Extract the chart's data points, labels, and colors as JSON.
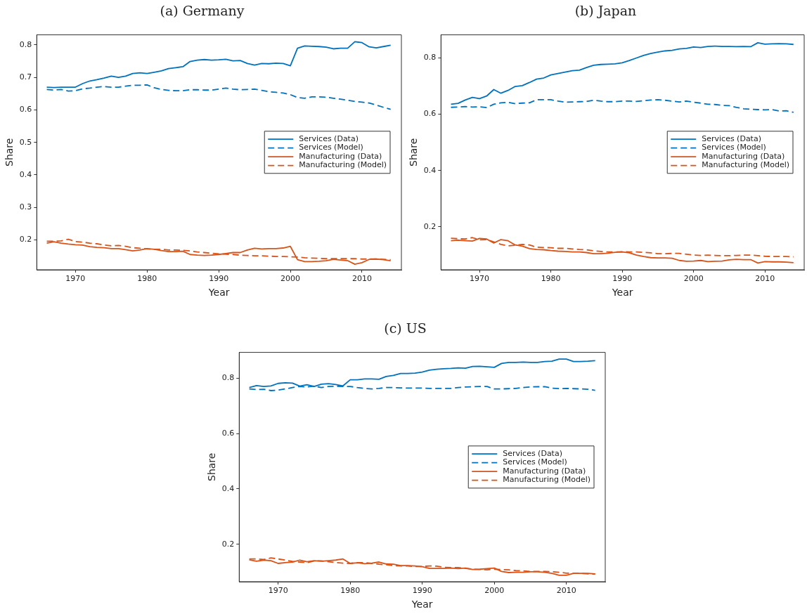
{
  "chart_data": [
    {
      "type": "line",
      "title": "(a) Germany",
      "xlabel": "Year",
      "ylabel": "Share",
      "legend": "right",
      "grid": false,
      "x": [
        1966,
        1967,
        1968,
        1969,
        1970,
        1971,
        1972,
        1973,
        1974,
        1975,
        1976,
        1977,
        1978,
        1979,
        1980,
        1981,
        1982,
        1983,
        1984,
        1985,
        1986,
        1987,
        1988,
        1989,
        1990,
        1991,
        1992,
        1993,
        1994,
        1995,
        1996,
        1997,
        1998,
        1999,
        2000,
        2001,
        2002,
        2003,
        2004,
        2005,
        2006,
        2007,
        2008,
        2009,
        2010,
        2011,
        2012,
        2013,
        2014
      ],
      "xlim": [
        1964.6,
        2015.5
      ],
      "xticks": [
        1970,
        1980,
        1990,
        2000,
        2010
      ],
      "ylim": [
        0.108,
        0.831
      ],
      "yticks": [
        0.2,
        0.3,
        0.4,
        0.5,
        0.6,
        0.7,
        0.8
      ],
      "series": [
        {
          "name": "Services (Data)",
          "color": "#0072bd",
          "line_style": "solid",
          "values": [
            0.67,
            0.669,
            0.67,
            0.67,
            0.67,
            0.681,
            0.689,
            0.693,
            0.698,
            0.704,
            0.7,
            0.704,
            0.712,
            0.714,
            0.712,
            0.716,
            0.72,
            0.727,
            0.73,
            0.733,
            0.749,
            0.753,
            0.755,
            0.753,
            0.754,
            0.756,
            0.751,
            0.752,
            0.743,
            0.738,
            0.743,
            0.742,
            0.744,
            0.743,
            0.736,
            0.79,
            0.797,
            0.796,
            0.795,
            0.793,
            0.788,
            0.79,
            0.79,
            0.81,
            0.807,
            0.794,
            0.791,
            0.795,
            0.799
          ]
        },
        {
          "name": "Services (Model)",
          "color": "#0072bd",
          "line_style": "dashed",
          "values": [
            0.663,
            0.661,
            0.663,
            0.658,
            0.659,
            0.665,
            0.667,
            0.67,
            0.672,
            0.67,
            0.67,
            0.673,
            0.676,
            0.676,
            0.677,
            0.668,
            0.663,
            0.66,
            0.659,
            0.659,
            0.662,
            0.662,
            0.661,
            0.661,
            0.664,
            0.667,
            0.664,
            0.662,
            0.663,
            0.664,
            0.66,
            0.656,
            0.654,
            0.652,
            0.647,
            0.638,
            0.636,
            0.64,
            0.64,
            0.639,
            0.636,
            0.633,
            0.63,
            0.626,
            0.624,
            0.621,
            0.615,
            0.608,
            0.602
          ]
        },
        {
          "name": "Manufacturing (Data)",
          "color": "#d95319",
          "line_style": "solid",
          "values": [
            0.19,
            0.194,
            0.19,
            0.187,
            0.185,
            0.184,
            0.179,
            0.177,
            0.176,
            0.173,
            0.173,
            0.17,
            0.166,
            0.169,
            0.173,
            0.171,
            0.167,
            0.164,
            0.164,
            0.165,
            0.155,
            0.153,
            0.152,
            0.153,
            0.155,
            0.158,
            0.161,
            0.161,
            0.169,
            0.174,
            0.172,
            0.173,
            0.173,
            0.175,
            0.18,
            0.139,
            0.133,
            0.133,
            0.134,
            0.136,
            0.14,
            0.138,
            0.136,
            0.125,
            0.13,
            0.14,
            0.141,
            0.139,
            0.136
          ]
        },
        {
          "name": "Manufacturing (Model)",
          "color": "#d95319",
          "line_style": "dashed",
          "values": [
            0.196,
            0.196,
            0.197,
            0.202,
            0.195,
            0.193,
            0.19,
            0.188,
            0.184,
            0.182,
            0.183,
            0.18,
            0.176,
            0.174,
            0.172,
            0.171,
            0.171,
            0.169,
            0.169,
            0.168,
            0.166,
            0.163,
            0.161,
            0.159,
            0.157,
            0.156,
            0.155,
            0.153,
            0.152,
            0.151,
            0.151,
            0.15,
            0.149,
            0.149,
            0.148,
            0.147,
            0.145,
            0.144,
            0.143,
            0.142,
            0.142,
            0.142,
            0.142,
            0.142,
            0.141,
            0.141,
            0.141,
            0.14,
            0.139
          ]
        }
      ]
    },
    {
      "type": "line",
      "title": "(b) Japan",
      "xlabel": "Year",
      "ylabel": "Share",
      "legend": "right",
      "grid": false,
      "x": [
        1966,
        1967,
        1968,
        1969,
        1970,
        1971,
        1972,
        1973,
        1974,
        1975,
        1976,
        1977,
        1978,
        1979,
        1980,
        1981,
        1982,
        1983,
        1984,
        1985,
        1986,
        1987,
        1988,
        1989,
        1990,
        1991,
        1992,
        1993,
        1994,
        1995,
        1996,
        1997,
        1998,
        1999,
        2000,
        2001,
        2002,
        2003,
        2004,
        2005,
        2006,
        2007,
        2008,
        2009,
        2010,
        2011,
        2012,
        2013,
        2014
      ],
      "xlim": [
        1964.6,
        2015.5
      ],
      "xticks": [
        1970,
        1980,
        1990,
        2000,
        2010
      ],
      "ylim": [
        0.048,
        0.881
      ],
      "yticks": [
        0.2,
        0.4,
        0.6,
        0.8
      ],
      "series": [
        {
          "name": "Services (Data)",
          "color": "#0072bd",
          "line_style": "solid",
          "values": [
            0.635,
            0.638,
            0.65,
            0.659,
            0.655,
            0.664,
            0.687,
            0.674,
            0.684,
            0.698,
            0.701,
            0.712,
            0.724,
            0.728,
            0.739,
            0.744,
            0.749,
            0.754,
            0.756,
            0.765,
            0.773,
            0.776,
            0.777,
            0.778,
            0.782,
            0.79,
            0.799,
            0.808,
            0.815,
            0.82,
            0.824,
            0.826,
            0.831,
            0.833,
            0.838,
            0.836,
            0.84,
            0.841,
            0.84,
            0.84,
            0.839,
            0.84,
            0.839,
            0.853,
            0.848,
            0.849,
            0.85,
            0.849,
            0.847
          ]
        },
        {
          "name": "Services (Model)",
          "color": "#0072bd",
          "line_style": "dashed",
          "values": [
            0.624,
            0.625,
            0.627,
            0.625,
            0.626,
            0.623,
            0.635,
            0.64,
            0.642,
            0.637,
            0.639,
            0.64,
            0.651,
            0.651,
            0.651,
            0.646,
            0.642,
            0.643,
            0.644,
            0.645,
            0.649,
            0.646,
            0.644,
            0.644,
            0.646,
            0.646,
            0.645,
            0.647,
            0.65,
            0.651,
            0.649,
            0.646,
            0.643,
            0.646,
            0.642,
            0.639,
            0.635,
            0.634,
            0.631,
            0.63,
            0.624,
            0.619,
            0.617,
            0.616,
            0.615,
            0.616,
            0.611,
            0.612,
            0.606
          ]
        },
        {
          "name": "Manufacturing (Data)",
          "color": "#d95319",
          "line_style": "solid",
          "values": [
            0.151,
            0.153,
            0.151,
            0.15,
            0.159,
            0.157,
            0.143,
            0.155,
            0.151,
            0.136,
            0.132,
            0.123,
            0.12,
            0.119,
            0.116,
            0.114,
            0.113,
            0.111,
            0.111,
            0.109,
            0.105,
            0.105,
            0.107,
            0.11,
            0.111,
            0.108,
            0.1,
            0.095,
            0.091,
            0.09,
            0.09,
            0.089,
            0.081,
            0.078,
            0.079,
            0.081,
            0.077,
            0.078,
            0.079,
            0.083,
            0.085,
            0.084,
            0.084,
            0.072,
            0.077,
            0.076,
            0.076,
            0.075,
            0.073
          ]
        },
        {
          "name": "Manufacturing (Model)",
          "color": "#d95319",
          "line_style": "dashed",
          "values": [
            0.16,
            0.158,
            0.157,
            0.162,
            0.154,
            0.155,
            0.147,
            0.138,
            0.133,
            0.135,
            0.138,
            0.136,
            0.128,
            0.127,
            0.126,
            0.124,
            0.124,
            0.122,
            0.12,
            0.119,
            0.115,
            0.113,
            0.111,
            0.111,
            0.112,
            0.111,
            0.111,
            0.11,
            0.108,
            0.105,
            0.105,
            0.106,
            0.106,
            0.103,
            0.1,
            0.099,
            0.1,
            0.099,
            0.098,
            0.098,
            0.099,
            0.1,
            0.1,
            0.098,
            0.096,
            0.095,
            0.095,
            0.095,
            0.094
          ]
        }
      ]
    },
    {
      "type": "line",
      "title": "(c) US",
      "xlabel": "Year",
      "ylabel": "Share",
      "legend": "right",
      "grid": false,
      "x": [
        1966,
        1967,
        1968,
        1969,
        1970,
        1971,
        1972,
        1973,
        1974,
        1975,
        1976,
        1977,
        1978,
        1979,
        1980,
        1981,
        1982,
        1983,
        1984,
        1985,
        1986,
        1987,
        1988,
        1989,
        1990,
        1991,
        1992,
        1993,
        1994,
        1995,
        1996,
        1997,
        1998,
        1999,
        2000,
        2001,
        2002,
        2003,
        2004,
        2005,
        2006,
        2007,
        2008,
        2009,
        2010,
        2011,
        2012,
        2013,
        2014
      ],
      "xlim": [
        1964.6,
        2015.4
      ],
      "xticks": [
        1970,
        1980,
        1990,
        2000,
        2010
      ],
      "ylim": [
        0.065,
        0.893
      ],
      "yticks": [
        0.2,
        0.4,
        0.6,
        0.8
      ],
      "series": [
        {
          "name": "Services (Data)",
          "color": "#0072bd",
          "line_style": "solid",
          "values": [
            0.766,
            0.773,
            0.77,
            0.772,
            0.781,
            0.783,
            0.782,
            0.771,
            0.776,
            0.77,
            0.778,
            0.78,
            0.777,
            0.772,
            0.794,
            0.794,
            0.797,
            0.797,
            0.796,
            0.806,
            0.81,
            0.817,
            0.817,
            0.818,
            0.822,
            0.829,
            0.832,
            0.834,
            0.835,
            0.837,
            0.836,
            0.842,
            0.843,
            0.841,
            0.839,
            0.853,
            0.857,
            0.857,
            0.858,
            0.857,
            0.857,
            0.86,
            0.861,
            0.869,
            0.869,
            0.86,
            0.86,
            0.861,
            0.863
          ]
        },
        {
          "name": "Services (Model)",
          "color": "#0072bd",
          "line_style": "dashed",
          "values": [
            0.761,
            0.759,
            0.76,
            0.755,
            0.757,
            0.761,
            0.766,
            0.77,
            0.768,
            0.771,
            0.766,
            0.77,
            0.771,
            0.77,
            0.77,
            0.766,
            0.763,
            0.761,
            0.763,
            0.766,
            0.766,
            0.765,
            0.764,
            0.764,
            0.764,
            0.763,
            0.763,
            0.763,
            0.763,
            0.766,
            0.768,
            0.769,
            0.77,
            0.77,
            0.761,
            0.761,
            0.762,
            0.763,
            0.766,
            0.768,
            0.769,
            0.769,
            0.764,
            0.762,
            0.763,
            0.762,
            0.761,
            0.76,
            0.756
          ]
        },
        {
          "name": "Manufacturing (Data)",
          "color": "#d95319",
          "line_style": "solid",
          "values": [
            0.144,
            0.139,
            0.143,
            0.141,
            0.131,
            0.134,
            0.136,
            0.143,
            0.137,
            0.141,
            0.139,
            0.141,
            0.143,
            0.147,
            0.131,
            0.133,
            0.13,
            0.132,
            0.136,
            0.129,
            0.128,
            0.123,
            0.123,
            0.122,
            0.119,
            0.113,
            0.113,
            0.113,
            0.114,
            0.112,
            0.114,
            0.109,
            0.11,
            0.112,
            0.114,
            0.102,
            0.098,
            0.099,
            0.099,
            0.101,
            0.101,
            0.099,
            0.095,
            0.088,
            0.088,
            0.095,
            0.095,
            0.095,
            0.093
          ]
        },
        {
          "name": "Manufacturing (Model)",
          "color": "#d95319",
          "line_style": "dashed",
          "values": [
            0.147,
            0.147,
            0.145,
            0.151,
            0.147,
            0.143,
            0.138,
            0.136,
            0.134,
            0.14,
            0.14,
            0.137,
            0.134,
            0.132,
            0.131,
            0.134,
            0.134,
            0.131,
            0.128,
            0.126,
            0.123,
            0.122,
            0.122,
            0.12,
            0.12,
            0.122,
            0.121,
            0.117,
            0.116,
            0.116,
            0.113,
            0.11,
            0.109,
            0.108,
            0.11,
            0.109,
            0.108,
            0.105,
            0.104,
            0.102,
            0.102,
            0.102,
            0.101,
            0.099,
            0.096,
            0.095,
            0.095,
            0.093,
            0.092
          ]
        }
      ]
    }
  ]
}
